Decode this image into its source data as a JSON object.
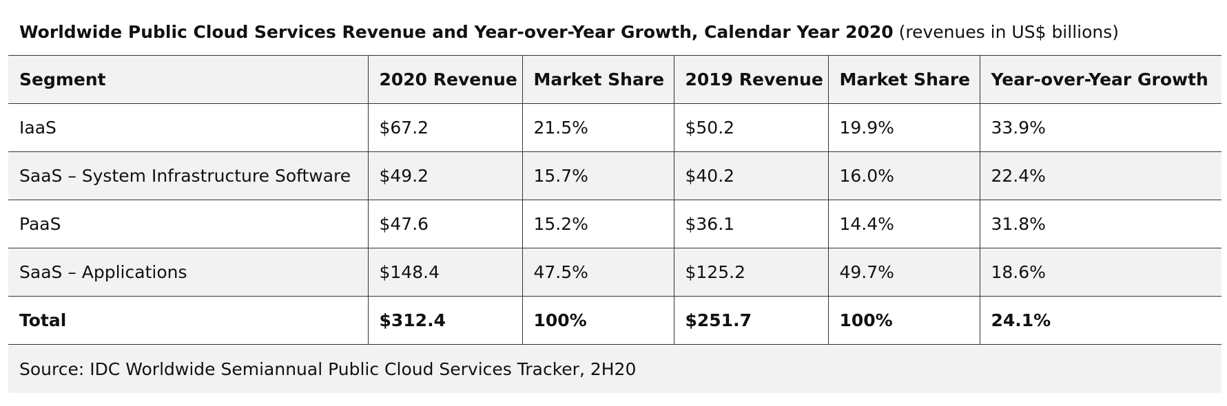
{
  "table": {
    "title": {
      "bold": "Worldwide Public Cloud Services Revenue and Year-over-Year Growth, Calendar Year 2020",
      "normal": " (revenues in US$ billions)"
    },
    "headers": [
      "Segment",
      "2020 Revenue",
      "Market Share",
      "2019 Revenue",
      "Market Share",
      "Year-over-Year Growth"
    ],
    "rows": [
      [
        "IaaS",
        "$67.2",
        "21.5%",
        "$50.2",
        "19.9%",
        "33.9%"
      ],
      [
        "SaaS – System Infrastructure Software",
        "$49.2",
        "15.7%",
        "$40.2",
        "16.0%",
        "22.4%"
      ],
      [
        "PaaS",
        "$47.6",
        "15.2%",
        "$36.1",
        "14.4%",
        "31.8%"
      ],
      [
        "SaaS – Applications",
        "$148.4",
        "47.5%",
        "$125.2",
        "49.7%",
        "18.6%"
      ],
      [
        "Total",
        "$312.4",
        "100%",
        "$251.7",
        "100%",
        "24.1%"
      ]
    ],
    "source": "Source: IDC Worldwide Semiannual Public Cloud Services Tracker, 2H20"
  }
}
